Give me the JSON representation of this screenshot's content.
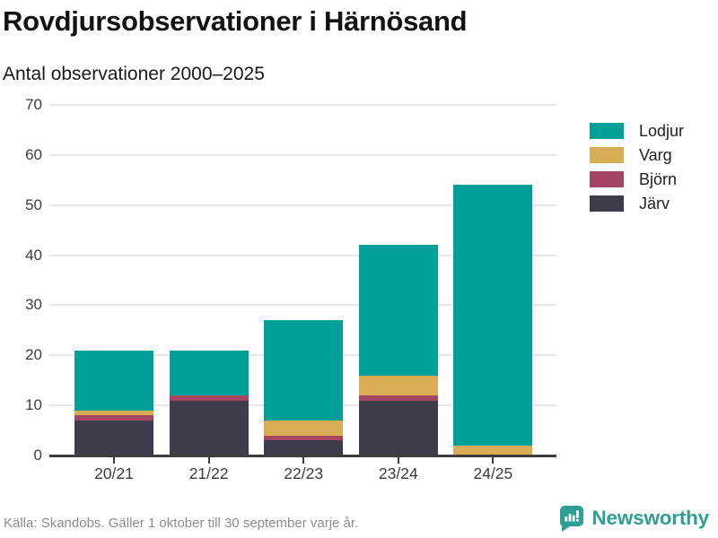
{
  "header": {
    "title": "Rovdjursobservationer i Härnösand",
    "subtitle": "Antal observationer 2000–2025"
  },
  "chart_data": {
    "type": "bar",
    "stacked": true,
    "title": "Rovdjursobservationer i Härnösand",
    "subtitle": "Antal observationer 2000–2025",
    "categories": [
      "20/21",
      "21/22",
      "22/23",
      "23/24",
      "24/25"
    ],
    "series": [
      {
        "name": "Lodjur",
        "color": "#00a099",
        "values": [
          12,
          9,
          20,
          26,
          52
        ]
      },
      {
        "name": "Varg",
        "color": "#d9ad55",
        "values": [
          1,
          0,
          3,
          4,
          2
        ]
      },
      {
        "name": "Björn",
        "color": "#a44561",
        "values": [
          1,
          1,
          1,
          1,
          0
        ]
      },
      {
        "name": "Järv",
        "color": "#403b4a",
        "values": [
          7,
          11,
          3,
          11,
          0
        ]
      }
    ],
    "totals": [
      21,
      21,
      27,
      42,
      54
    ],
    "ylim": [
      0,
      70
    ],
    "yticks": [
      0,
      10,
      20,
      30,
      40,
      50,
      60,
      70
    ],
    "xlabel": "",
    "ylabel": "",
    "grid": "horizontal",
    "legend_position": "right",
    "colors": {
      "grid": "#e7e7e7",
      "axis": "#3d3d3d",
      "tick_text": "#3c3c3c"
    }
  },
  "footer": {
    "source": "Källa: Skandobs. Gäller 1 oktober till 30 september varje år.",
    "brand": "Newsworthy",
    "brand_color": "#2f9f95"
  }
}
